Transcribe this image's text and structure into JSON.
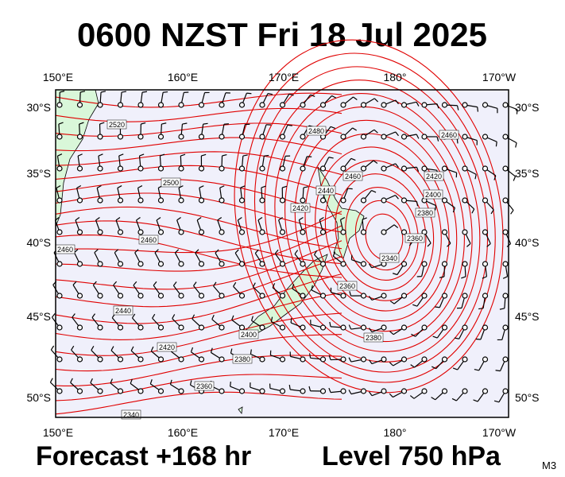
{
  "header": {
    "title": "0600 NZST Fri 18 Jul 2025"
  },
  "map": {
    "top_labels": [
      "150°E",
      "160°E",
      "170°E",
      "180°",
      "170°W"
    ],
    "bottom_labels": [
      "150°E",
      "160°E",
      "170°E",
      "180°",
      "170°W"
    ],
    "left_labels": [
      "30°S",
      "35°S",
      "40°S",
      "45°S",
      "50°S"
    ],
    "right_labels": [
      "30°S",
      "35°S",
      "40°S",
      "45°S",
      "50°S"
    ],
    "contour_labels": [
      "2520",
      "2500",
      "2460",
      "2460",
      "2440",
      "2420",
      "2400",
      "2380",
      "2360",
      "2340",
      "2480",
      "2460",
      "2440",
      "2420",
      "2460",
      "2420",
      "2400",
      "2380",
      "2360",
      "2340",
      "2360",
      "2380"
    ]
  },
  "footer": {
    "forecast": "Forecast +168 hr",
    "level": "Level 750 hPa",
    "model": "M3"
  }
}
